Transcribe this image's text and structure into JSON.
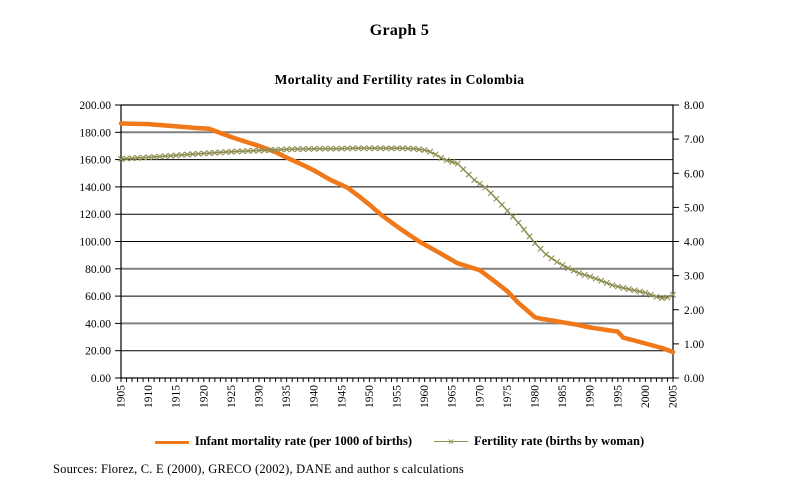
{
  "page": {
    "title": "Graph 5",
    "sources": "Sources: Florez, C. E (2000), GRECO (2002), DANE and author s calculations"
  },
  "chart_data": {
    "type": "line",
    "title": "Mortality and Fertility rates in Colombia",
    "x_axis": {
      "min": 1905,
      "max": 2005,
      "tick_interval": 1,
      "label_interval": 5,
      "labels": [
        "1905",
        "1910",
        "1915",
        "1920",
        "1925",
        "1930",
        "1935",
        "1940",
        "1945",
        "1950",
        "1955",
        "1960",
        "1965",
        "1970",
        "1975",
        "1980",
        "1985",
        "1990",
        "1995",
        "2000",
        "2005"
      ]
    },
    "left_axis": {
      "min": 0,
      "max": 200,
      "step": 20,
      "labels": [
        "0.00",
        "20.00",
        "40.00",
        "60.00",
        "80.00",
        "100.00",
        "120.00",
        "140.00",
        "160.00",
        "180.00",
        "200.00"
      ],
      "gridline_color": "#000000",
      "gray_gridline_color": "#808080",
      "gray_gridlines": [
        180,
        80,
        40
      ]
    },
    "right_axis": {
      "min": 0,
      "max": 8,
      "step": 1,
      "labels": [
        "0.00",
        "1.00",
        "2.00",
        "3.00",
        "4.00",
        "5.00",
        "6.00",
        "7.00",
        "8.00"
      ]
    },
    "series": [
      {
        "name": "Infant mortality rate (per 1000 of births)",
        "axis": "left",
        "color": "#F07818",
        "line_width": 4.5,
        "marker": "none",
        "marker_glyph": "",
        "points": [
          [
            1905,
            186.5
          ],
          [
            1907,
            186.2
          ],
          [
            1910,
            186.0
          ],
          [
            1913,
            185.0
          ],
          [
            1916,
            184.0
          ],
          [
            1918,
            183.3
          ],
          [
            1921,
            182.6
          ],
          [
            1923,
            179.5
          ],
          [
            1925,
            176.5
          ],
          [
            1928,
            172.5
          ],
          [
            1930,
            170.0
          ],
          [
            1933,
            165.5
          ],
          [
            1935,
            161.5
          ],
          [
            1938,
            156.0
          ],
          [
            1940,
            152.0
          ],
          [
            1943,
            145.0
          ],
          [
            1946,
            139.5
          ],
          [
            1948,
            133.5
          ],
          [
            1950,
            127.0
          ],
          [
            1952,
            120.0
          ],
          [
            1955,
            111.0
          ],
          [
            1957,
            105.5
          ],
          [
            1959,
            100.0
          ],
          [
            1961,
            95.5
          ],
          [
            1963,
            91.0
          ],
          [
            1966,
            84.0
          ],
          [
            1968,
            81.5
          ],
          [
            1970,
            79.0
          ],
          [
            1972,
            73.0
          ],
          [
            1975,
            63.5
          ],
          [
            1977,
            55.0
          ],
          [
            1978,
            51.5
          ],
          [
            1980,
            44.5
          ],
          [
            1981,
            43.5
          ],
          [
            1984,
            41.5
          ],
          [
            1987,
            39.5
          ],
          [
            1990,
            37.0
          ],
          [
            1993,
            35.2
          ],
          [
            1995,
            34.0
          ],
          [
            1996,
            29.5
          ],
          [
            1998,
            27.5
          ],
          [
            2001,
            24.2
          ],
          [
            2003,
            22.0
          ],
          [
            2005,
            19.0
          ]
        ]
      },
      {
        "name": "Fertility rate (births by woman)",
        "axis": "right",
        "color": "#8F8F52",
        "line_width": 1.5,
        "marker": "x",
        "marker_glyph": "×",
        "points": [
          [
            1905,
            6.42
          ],
          [
            1908,
            6.45
          ],
          [
            1911,
            6.48
          ],
          [
            1914,
            6.51
          ],
          [
            1917,
            6.55
          ],
          [
            1920,
            6.58
          ],
          [
            1923,
            6.61
          ],
          [
            1926,
            6.64
          ],
          [
            1929,
            6.66
          ],
          [
            1932,
            6.68
          ],
          [
            1935,
            6.7
          ],
          [
            1938,
            6.71
          ],
          [
            1941,
            6.72
          ],
          [
            1944,
            6.72
          ],
          [
            1947,
            6.73
          ],
          [
            1950,
            6.73
          ],
          [
            1953,
            6.73
          ],
          [
            1956,
            6.73
          ],
          [
            1958,
            6.72
          ],
          [
            1960,
            6.68
          ],
          [
            1961,
            6.63
          ],
          [
            1962,
            6.55
          ],
          [
            1963,
            6.45
          ],
          [
            1964,
            6.38
          ],
          [
            1966,
            6.28
          ],
          [
            1967,
            6.12
          ],
          [
            1968,
            5.96
          ],
          [
            1969,
            5.8
          ],
          [
            1971,
            5.58
          ],
          [
            1973,
            5.25
          ],
          [
            1975,
            4.9
          ],
          [
            1977,
            4.55
          ],
          [
            1979,
            4.15
          ],
          [
            1980,
            3.95
          ],
          [
            1982,
            3.62
          ],
          [
            1984,
            3.4
          ],
          [
            1986,
            3.22
          ],
          [
            1988,
            3.07
          ],
          [
            1990,
            2.97
          ],
          [
            1992,
            2.85
          ],
          [
            1994,
            2.72
          ],
          [
            1996,
            2.64
          ],
          [
            1998,
            2.57
          ],
          [
            2000,
            2.5
          ],
          [
            2002,
            2.38
          ],
          [
            2003,
            2.34
          ],
          [
            2004,
            2.36
          ],
          [
            2005,
            2.44
          ]
        ]
      }
    ],
    "legend_position": "bottom-center",
    "grid": true
  }
}
